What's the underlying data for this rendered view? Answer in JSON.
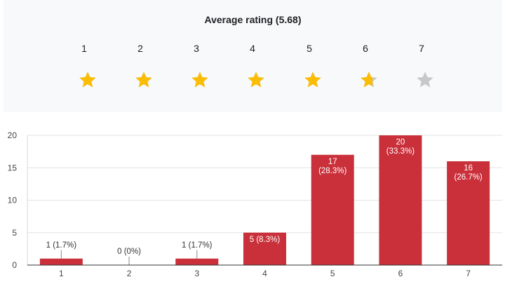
{
  "rating": {
    "title": "Average rating (5.68)",
    "average": 5.68,
    "scale": [
      "1",
      "2",
      "3",
      "4",
      "5",
      "6",
      "7"
    ],
    "star_filled_color": "#fbbc04",
    "star_empty_color": "#c8c8c8"
  },
  "chart_data": {
    "type": "bar",
    "categories": [
      "1",
      "2",
      "3",
      "4",
      "5",
      "6",
      "7"
    ],
    "values": [
      1,
      0,
      1,
      5,
      17,
      20,
      16
    ],
    "labels": [
      [
        "1 (1.7%)"
      ],
      [
        "0 (0%)"
      ],
      [
        "1 (1.7%)"
      ],
      [
        "5 (8.3%)"
      ],
      [
        "17",
        "(28.3%)"
      ],
      [
        "20",
        "(33.3%)"
      ],
      [
        "16",
        "(26.7%)"
      ]
    ],
    "yticks": [
      "0",
      "5",
      "10",
      "15",
      "20"
    ],
    "ylim": [
      0,
      20
    ],
    "grid": true,
    "bar_color": "#c9303a"
  }
}
